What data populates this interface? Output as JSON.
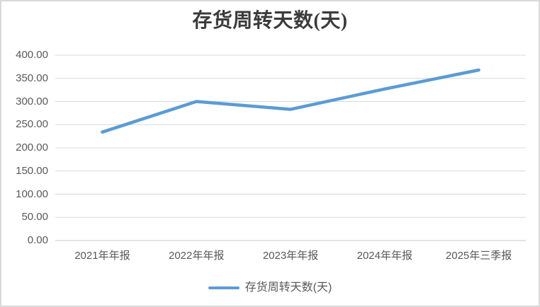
{
  "chart_data": {
    "type": "line",
    "title": "存货周转天数(天)",
    "categories": [
      "2021年年报",
      "2022年年报",
      "2023年年报",
      "2024年年报",
      "2025年三季报"
    ],
    "series": [
      {
        "name": "存货周转天数(天)",
        "values": [
          234,
          300,
          283,
          327,
          368
        ]
      }
    ],
    "ylim": [
      0,
      400
    ],
    "ytick_step": 50,
    "y_tick_labels": [
      "0.00",
      "50.00",
      "100.00",
      "150.00",
      "200.00",
      "250.00",
      "300.00",
      "350.00",
      "400.00"
    ],
    "grid": true,
    "xlabel": "",
    "ylabel": "",
    "legend_position": "bottom"
  },
  "colors": {
    "series_line": "#5B9BD5",
    "gridline": "#D9D9D9",
    "baseline_gridline": "#C9C9C9",
    "axis_text": "#595959",
    "title_text": "#3B3B3B",
    "border": "#D9D9D9",
    "background": "#FFFFFF"
  }
}
